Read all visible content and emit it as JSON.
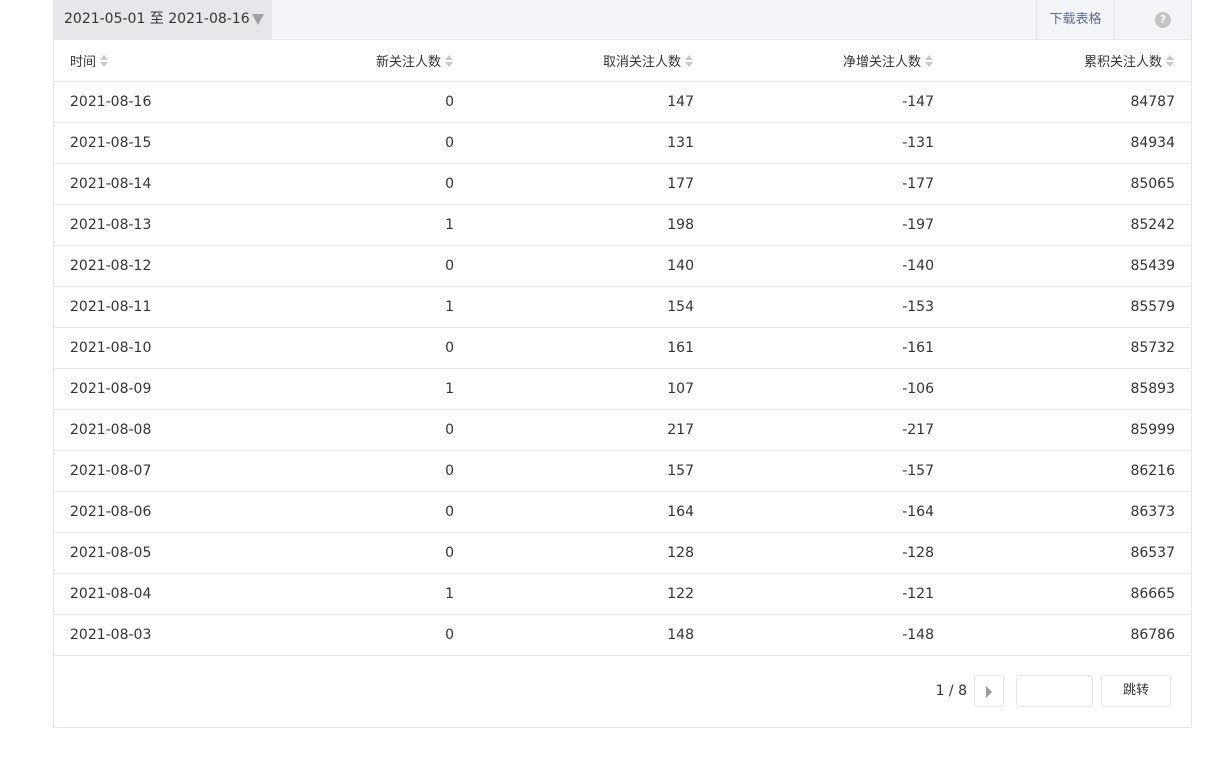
{
  "toolbar": {
    "date_range": "2021-05-01 至 2021-08-16",
    "download_label": "下载表格",
    "help_icon": "?"
  },
  "table": {
    "headers": [
      "时间",
      "新关注人数",
      "取消关注人数",
      "净增关注人数",
      "累积关注人数"
    ],
    "rows": [
      [
        "2021-08-16",
        "0",
        "147",
        "-147",
        "84787"
      ],
      [
        "2021-08-15",
        "0",
        "131",
        "-131",
        "84934"
      ],
      [
        "2021-08-14",
        "0",
        "177",
        "-177",
        "85065"
      ],
      [
        "2021-08-13",
        "1",
        "198",
        "-197",
        "85242"
      ],
      [
        "2021-08-12",
        "0",
        "140",
        "-140",
        "85439"
      ],
      [
        "2021-08-11",
        "1",
        "154",
        "-153",
        "85579"
      ],
      [
        "2021-08-10",
        "0",
        "161",
        "-161",
        "85732"
      ],
      [
        "2021-08-09",
        "1",
        "107",
        "-106",
        "85893"
      ],
      [
        "2021-08-08",
        "0",
        "217",
        "-217",
        "85999"
      ],
      [
        "2021-08-07",
        "0",
        "157",
        "-157",
        "86216"
      ],
      [
        "2021-08-06",
        "0",
        "164",
        "-164",
        "86373"
      ],
      [
        "2021-08-05",
        "0",
        "128",
        "-128",
        "86537"
      ],
      [
        "2021-08-04",
        "1",
        "122",
        "-121",
        "86665"
      ],
      [
        "2021-08-03",
        "0",
        "148",
        "-148",
        "86786"
      ]
    ]
  },
  "pagination": {
    "page_info": "1 / 8",
    "jump_value": "",
    "jump_label": "跳转"
  }
}
